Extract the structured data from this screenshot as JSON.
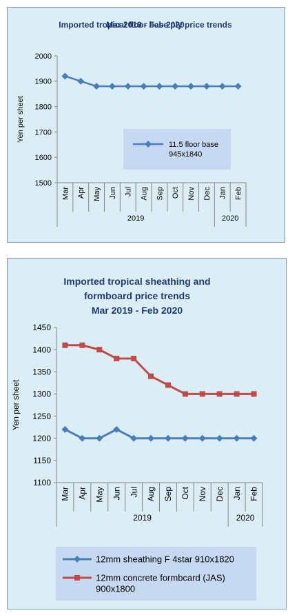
{
  "colors": {
    "panel_bg": "#dbeef6",
    "legend_bg": "#c6d9f1",
    "blue_series": "#4a7ebb",
    "red_series": "#be4b48",
    "title": "#1f3a72"
  },
  "chart_data": [
    {
      "type": "line",
      "title": "Imported tropical floor base ply price trends",
      "subtitle": "Mar 2019 - Feb 2020",
      "ylabel": "Yen per sheet",
      "ylim": [
        1500,
        2000
      ],
      "yticks": [
        1500,
        1600,
        1700,
        1800,
        1900,
        2000
      ],
      "categories": [
        "Mar",
        "Apr",
        "May",
        "Jun",
        "Jul",
        "Aug",
        "Sep",
        "Oct",
        "Nov",
        "Dec",
        "Jan",
        "Feb"
      ],
      "year_groups": [
        {
          "label": "2019",
          "count": 10
        },
        {
          "label": "2020",
          "count": 2
        }
      ],
      "grid": false,
      "legend_position": "center-right",
      "series": [
        {
          "name": "11.5 floor base 945x1840",
          "color": "#4a7ebb",
          "marker": "diamond",
          "values": [
            1920,
            1900,
            1880,
            1880,
            1880,
            1880,
            1880,
            1880,
            1880,
            1880,
            1880,
            1880
          ]
        }
      ]
    },
    {
      "type": "line",
      "title": "Imported tropical sheathing and formboard price trends",
      "title_lines": [
        "Imported tropical sheathing and",
        "formboard price trends"
      ],
      "subtitle": "Mar 2019 - Feb 2020",
      "ylabel": "Yen per sheet",
      "ylim": [
        1100,
        1450
      ],
      "yticks": [
        1100,
        1150,
        1200,
        1250,
        1300,
        1350,
        1400,
        1450
      ],
      "categories": [
        "Mar",
        "Apr",
        "May",
        "Jun",
        "Jul",
        "Aug",
        "Sep",
        "Oct",
        "Nov",
        "Dec",
        "Jan",
        "Feb"
      ],
      "year_groups": [
        {
          "label": "2019",
          "count": 10
        },
        {
          "label": "2020",
          "count": 2
        }
      ],
      "grid": false,
      "legend_position": "bottom",
      "series": [
        {
          "name": "12mm sheathing F 4star 910x1820",
          "color": "#4a7ebb",
          "marker": "diamond",
          "values": [
            1220,
            1200,
            1200,
            1220,
            1200,
            1200,
            1200,
            1200,
            1200,
            1200,
            1200,
            1200
          ]
        },
        {
          "name": "12mm concrete formbcard (JAS) 900x1800",
          "color": "#be4b48",
          "marker": "square",
          "values": [
            1410,
            1410,
            1400,
            1380,
            1380,
            1340,
            1320,
            1300,
            1300,
            1300,
            1300,
            1300
          ]
        }
      ]
    }
  ]
}
